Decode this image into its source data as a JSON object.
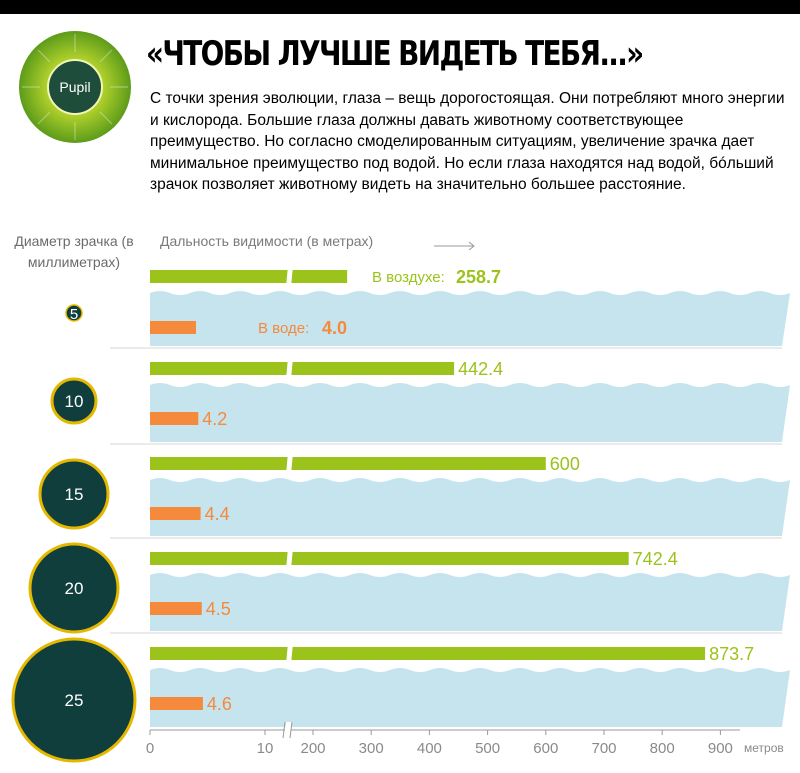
{
  "header": {
    "logo_text": "Pupil",
    "title": "«ЧТОБЫ ЛУЧШЕ ВИДЕТЬ ТЕБЯ...»",
    "intro": "С точки зрения эволюции, глаза – вещь дорогостоящая. Они потребляют много энергии и кислорода. Большие глаза должны давать животному соответствующее преимущество. Но согласно смоделированным ситуациям, увеличение зрачка дает минимальное преимущество под водой. Но если глаза находятся над водой, бóльший зрачок позволяет животному видеть на значительно большее расстояние."
  },
  "colors": {
    "air": "#9bc31b",
    "water": "#f58a3c",
    "wave": "#c6e4ee",
    "pupil_fill": "#0f3e3c",
    "pupil_ring": "#e5b800",
    "axis": "#999999",
    "separator": "#d5d5d5"
  },
  "chart_data": {
    "type": "bar",
    "ylabel": "Диаметр зрачка (в миллиметрах)",
    "xlabel": "Дальность видимости (в метрах)",
    "x_unit": "метров",
    "x_axis_break": [
      10,
      200
    ],
    "x_ticks_low": [
      0,
      10
    ],
    "x_ticks_high": [
      200,
      300,
      400,
      500,
      600,
      700,
      800,
      900
    ],
    "xlim": [
      0,
      950
    ],
    "categories": [
      "5",
      "10",
      "15",
      "20",
      "25"
    ],
    "series": [
      {
        "name": "В воздухе:",
        "values": [
          258.7,
          442.4,
          600,
          742.4,
          873.7
        ]
      },
      {
        "name": "В воде:",
        "values": [
          4.0,
          4.2,
          4.4,
          4.5,
          4.6
        ]
      }
    ],
    "value_labels": {
      "air": [
        "258.7",
        "442.4",
        "600",
        "742.4",
        "873.7"
      ],
      "water": [
        "4.0",
        "4.2",
        "4.4",
        "4.5",
        "4.6"
      ]
    },
    "grid": false
  }
}
